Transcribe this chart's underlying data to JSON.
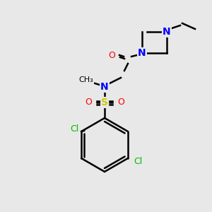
{
  "background_color": "#e8e8e8",
  "bond_color": "#000000",
  "bond_width": 1.8,
  "atom_colors": {
    "N": "#0000ff",
    "O": "#ff0000",
    "S": "#cccc00",
    "Cl_top": "#00bb00",
    "Cl_bot": "#00bb00",
    "C": "#000000"
  },
  "font_size": 9,
  "font_size_small": 8
}
